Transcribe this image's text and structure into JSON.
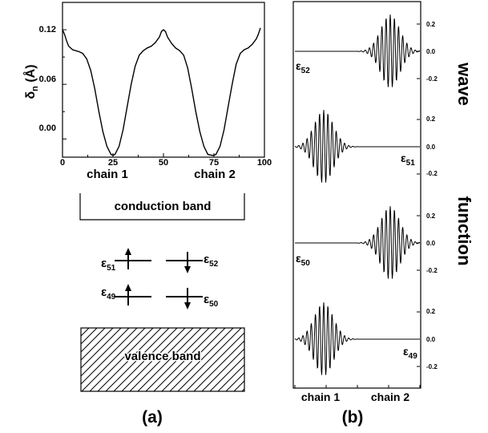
{
  "panel_a": {
    "label": "(a)",
    "ylabel": "δ",
    "ylabel_sub": "n",
    "ylabel_unit": "(Å)",
    "xticks": [
      "0",
      "25",
      "50",
      "75",
      "100"
    ],
    "yticks": [
      "0.12",
      "0.06",
      "0.00"
    ],
    "chain1": "chain 1",
    "chain2": "chain 2",
    "conduction_band": "conduction band",
    "valence_band": "valence band",
    "levels": [
      {
        "sym": "ε",
        "sub": "51",
        "spin": "up"
      },
      {
        "sym": "ε",
        "sub": "52",
        "spin": "down"
      },
      {
        "sym": "ε",
        "sub": "49",
        "spin": "up"
      },
      {
        "sym": "ε",
        "sub": "50",
        "spin": "down"
      }
    ]
  },
  "panel_b": {
    "label": "(b)",
    "side_label_1": "wave",
    "side_label_2": "function",
    "chain1": "chain 1",
    "chain2": "chain 2",
    "yticks": [
      "0.2",
      "0.0",
      "-0.2"
    ],
    "subplots": [
      {
        "sym": "ε",
        "sub": "52",
        "side": "right"
      },
      {
        "sym": "ε",
        "sub": "51",
        "side": "left"
      },
      {
        "sym": "ε",
        "sub": "50",
        "side": "right"
      },
      {
        "sym": "ε",
        "sub": "49",
        "side": "left"
      }
    ]
  },
  "chart_data": {
    "type": "line",
    "title": "",
    "xlabel": "",
    "ylabel": "δn (Å)",
    "xlim": [
      0,
      100
    ],
    "ylim": [
      -0.02,
      0.15
    ],
    "series": [
      {
        "x": [
          0,
          1,
          2,
          3,
          5,
          8,
          10,
          12,
          14,
          16,
          18,
          20,
          22,
          24,
          25,
          26,
          28,
          30,
          32,
          34,
          36,
          38,
          40,
          42,
          44,
          46,
          48,
          49,
          50,
          51,
          52,
          54,
          56,
          58,
          60,
          62,
          64,
          66,
          68,
          70,
          72,
          74,
          75,
          76,
          78,
          80,
          82,
          84,
          86,
          88,
          90,
          92,
          94,
          96,
          97,
          98
        ],
        "y": [
          0.12,
          0.115,
          0.108,
          0.102,
          0.098,
          0.096,
          0.094,
          0.088,
          0.075,
          0.055,
          0.03,
          0.008,
          -0.008,
          -0.017,
          -0.018,
          -0.017,
          -0.008,
          0.01,
          0.035,
          0.06,
          0.08,
          0.092,
          0.097,
          0.1,
          0.102,
          0.106,
          0.112,
          0.118,
          0.12,
          0.118,
          0.112,
          0.105,
          0.1,
          0.097,
          0.092,
          0.078,
          0.055,
          0.03,
          0.008,
          -0.008,
          -0.017,
          -0.018,
          -0.018,
          -0.017,
          -0.008,
          0.01,
          0.035,
          0.06,
          0.082,
          0.094,
          0.098,
          0.1,
          0.104,
          0.11,
          0.115,
          0.122
        ]
      }
    ]
  }
}
